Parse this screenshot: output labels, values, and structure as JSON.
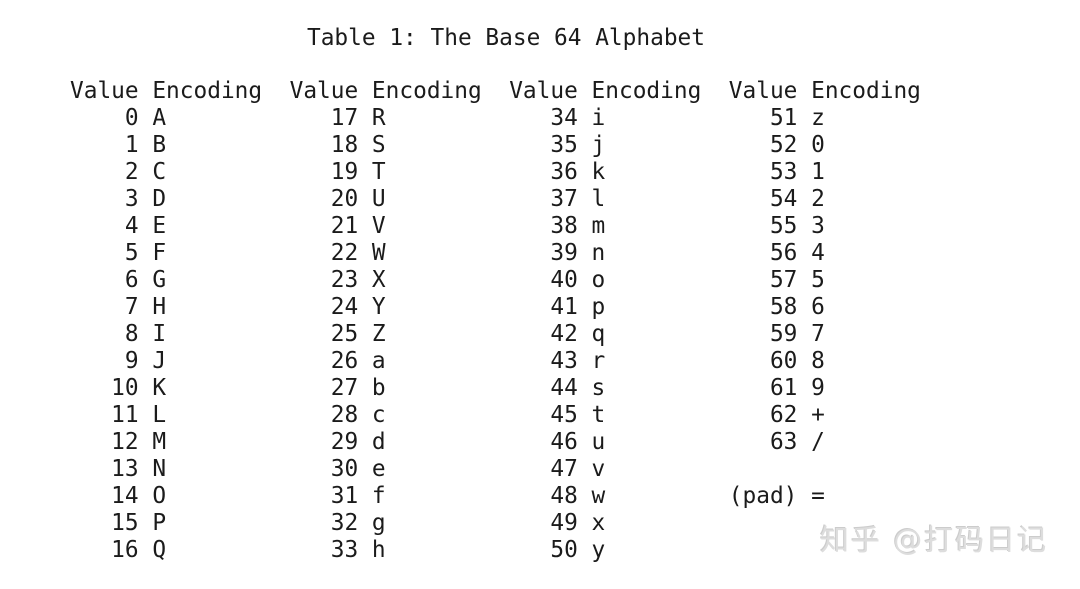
{
  "title": "Table 1: The Base 64 Alphabet",
  "watermark": "知乎 @打码日记",
  "text_color": "#1b1b1b",
  "background_color": "#ffffff",
  "table": {
    "columns": [
      {
        "header": {
          "value": "Value",
          "encoding": "Encoding"
        },
        "rows": [
          {
            "value": "0",
            "encoding": "A"
          },
          {
            "value": "1",
            "encoding": "B"
          },
          {
            "value": "2",
            "encoding": "C"
          },
          {
            "value": "3",
            "encoding": "D"
          },
          {
            "value": "4",
            "encoding": "E"
          },
          {
            "value": "5",
            "encoding": "F"
          },
          {
            "value": "6",
            "encoding": "G"
          },
          {
            "value": "7",
            "encoding": "H"
          },
          {
            "value": "8",
            "encoding": "I"
          },
          {
            "value": "9",
            "encoding": "J"
          },
          {
            "value": "10",
            "encoding": "K"
          },
          {
            "value": "11",
            "encoding": "L"
          },
          {
            "value": "12",
            "encoding": "M"
          },
          {
            "value": "13",
            "encoding": "N"
          },
          {
            "value": "14",
            "encoding": "O"
          },
          {
            "value": "15",
            "encoding": "P"
          },
          {
            "value": "16",
            "encoding": "Q"
          }
        ]
      },
      {
        "header": {
          "value": "Value",
          "encoding": "Encoding"
        },
        "rows": [
          {
            "value": "17",
            "encoding": "R"
          },
          {
            "value": "18",
            "encoding": "S"
          },
          {
            "value": "19",
            "encoding": "T"
          },
          {
            "value": "20",
            "encoding": "U"
          },
          {
            "value": "21",
            "encoding": "V"
          },
          {
            "value": "22",
            "encoding": "W"
          },
          {
            "value": "23",
            "encoding": "X"
          },
          {
            "value": "24",
            "encoding": "Y"
          },
          {
            "value": "25",
            "encoding": "Z"
          },
          {
            "value": "26",
            "encoding": "a"
          },
          {
            "value": "27",
            "encoding": "b"
          },
          {
            "value": "28",
            "encoding": "c"
          },
          {
            "value": "29",
            "encoding": "d"
          },
          {
            "value": "30",
            "encoding": "e"
          },
          {
            "value": "31",
            "encoding": "f"
          },
          {
            "value": "32",
            "encoding": "g"
          },
          {
            "value": "33",
            "encoding": "h"
          }
        ]
      },
      {
        "header": {
          "value": "Value",
          "encoding": "Encoding"
        },
        "rows": [
          {
            "value": "34",
            "encoding": "i"
          },
          {
            "value": "35",
            "encoding": "j"
          },
          {
            "value": "36",
            "encoding": "k"
          },
          {
            "value": "37",
            "encoding": "l"
          },
          {
            "value": "38",
            "encoding": "m"
          },
          {
            "value": "39",
            "encoding": "n"
          },
          {
            "value": "40",
            "encoding": "o"
          },
          {
            "value": "41",
            "encoding": "p"
          },
          {
            "value": "42",
            "encoding": "q"
          },
          {
            "value": "43",
            "encoding": "r"
          },
          {
            "value": "44",
            "encoding": "s"
          },
          {
            "value": "45",
            "encoding": "t"
          },
          {
            "value": "46",
            "encoding": "u"
          },
          {
            "value": "47",
            "encoding": "v"
          },
          {
            "value": "48",
            "encoding": "w"
          },
          {
            "value": "49",
            "encoding": "x"
          },
          {
            "value": "50",
            "encoding": "y"
          }
        ]
      },
      {
        "header": {
          "value": "Value",
          "encoding": "Encoding"
        },
        "rows": [
          {
            "value": "51",
            "encoding": "z"
          },
          {
            "value": "52",
            "encoding": "0"
          },
          {
            "value": "53",
            "encoding": "1"
          },
          {
            "value": "54",
            "encoding": "2"
          },
          {
            "value": "55",
            "encoding": "3"
          },
          {
            "value": "56",
            "encoding": "4"
          },
          {
            "value": "57",
            "encoding": "5"
          },
          {
            "value": "58",
            "encoding": "6"
          },
          {
            "value": "59",
            "encoding": "7"
          },
          {
            "value": "60",
            "encoding": "8"
          },
          {
            "value": "61",
            "encoding": "9"
          },
          {
            "value": "62",
            "encoding": "+"
          },
          {
            "value": "63",
            "encoding": "/"
          },
          {
            "value": "",
            "encoding": ""
          },
          {
            "value": "(pad)",
            "encoding": "="
          }
        ]
      }
    ]
  }
}
